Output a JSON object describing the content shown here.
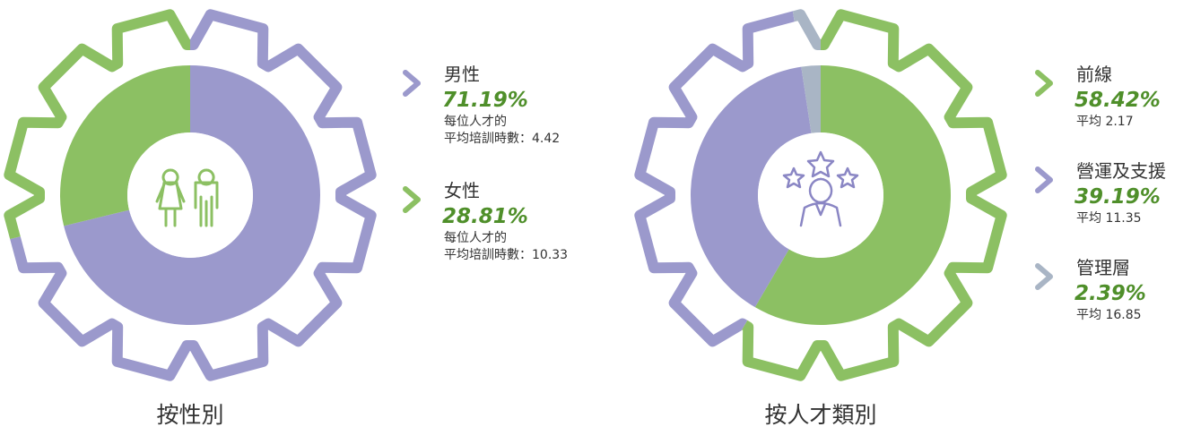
{
  "chart_data": [
    {
      "type": "donut",
      "title": "按性別",
      "categories": [
        "男性",
        "女性"
      ],
      "values": [
        71.19,
        28.81
      ],
      "value_labels": [
        "71.19%",
        "28.81%"
      ],
      "colors": [
        "#9b99cc",
        "#8cc063"
      ],
      "annotations": [
        [
          "每位人才的",
          "平均培訓時數：4.42"
        ],
        [
          "每位人才的",
          "平均培訓時數：10.33"
        ]
      ]
    },
    {
      "type": "donut",
      "title": "按人才類別",
      "categories": [
        "前線",
        "營運及支援",
        "管理層"
      ],
      "values": [
        58.42,
        39.19,
        2.39
      ],
      "value_labels": [
        "58.42%",
        "39.19%",
        "2.39%"
      ],
      "colors": [
        "#8cc063",
        "#9b99cc",
        "#a9b5c5"
      ],
      "annotations": [
        [
          "平均 2.17"
        ],
        [
          "平均 11.35"
        ],
        [
          "平均 16.85"
        ]
      ]
    }
  ]
}
